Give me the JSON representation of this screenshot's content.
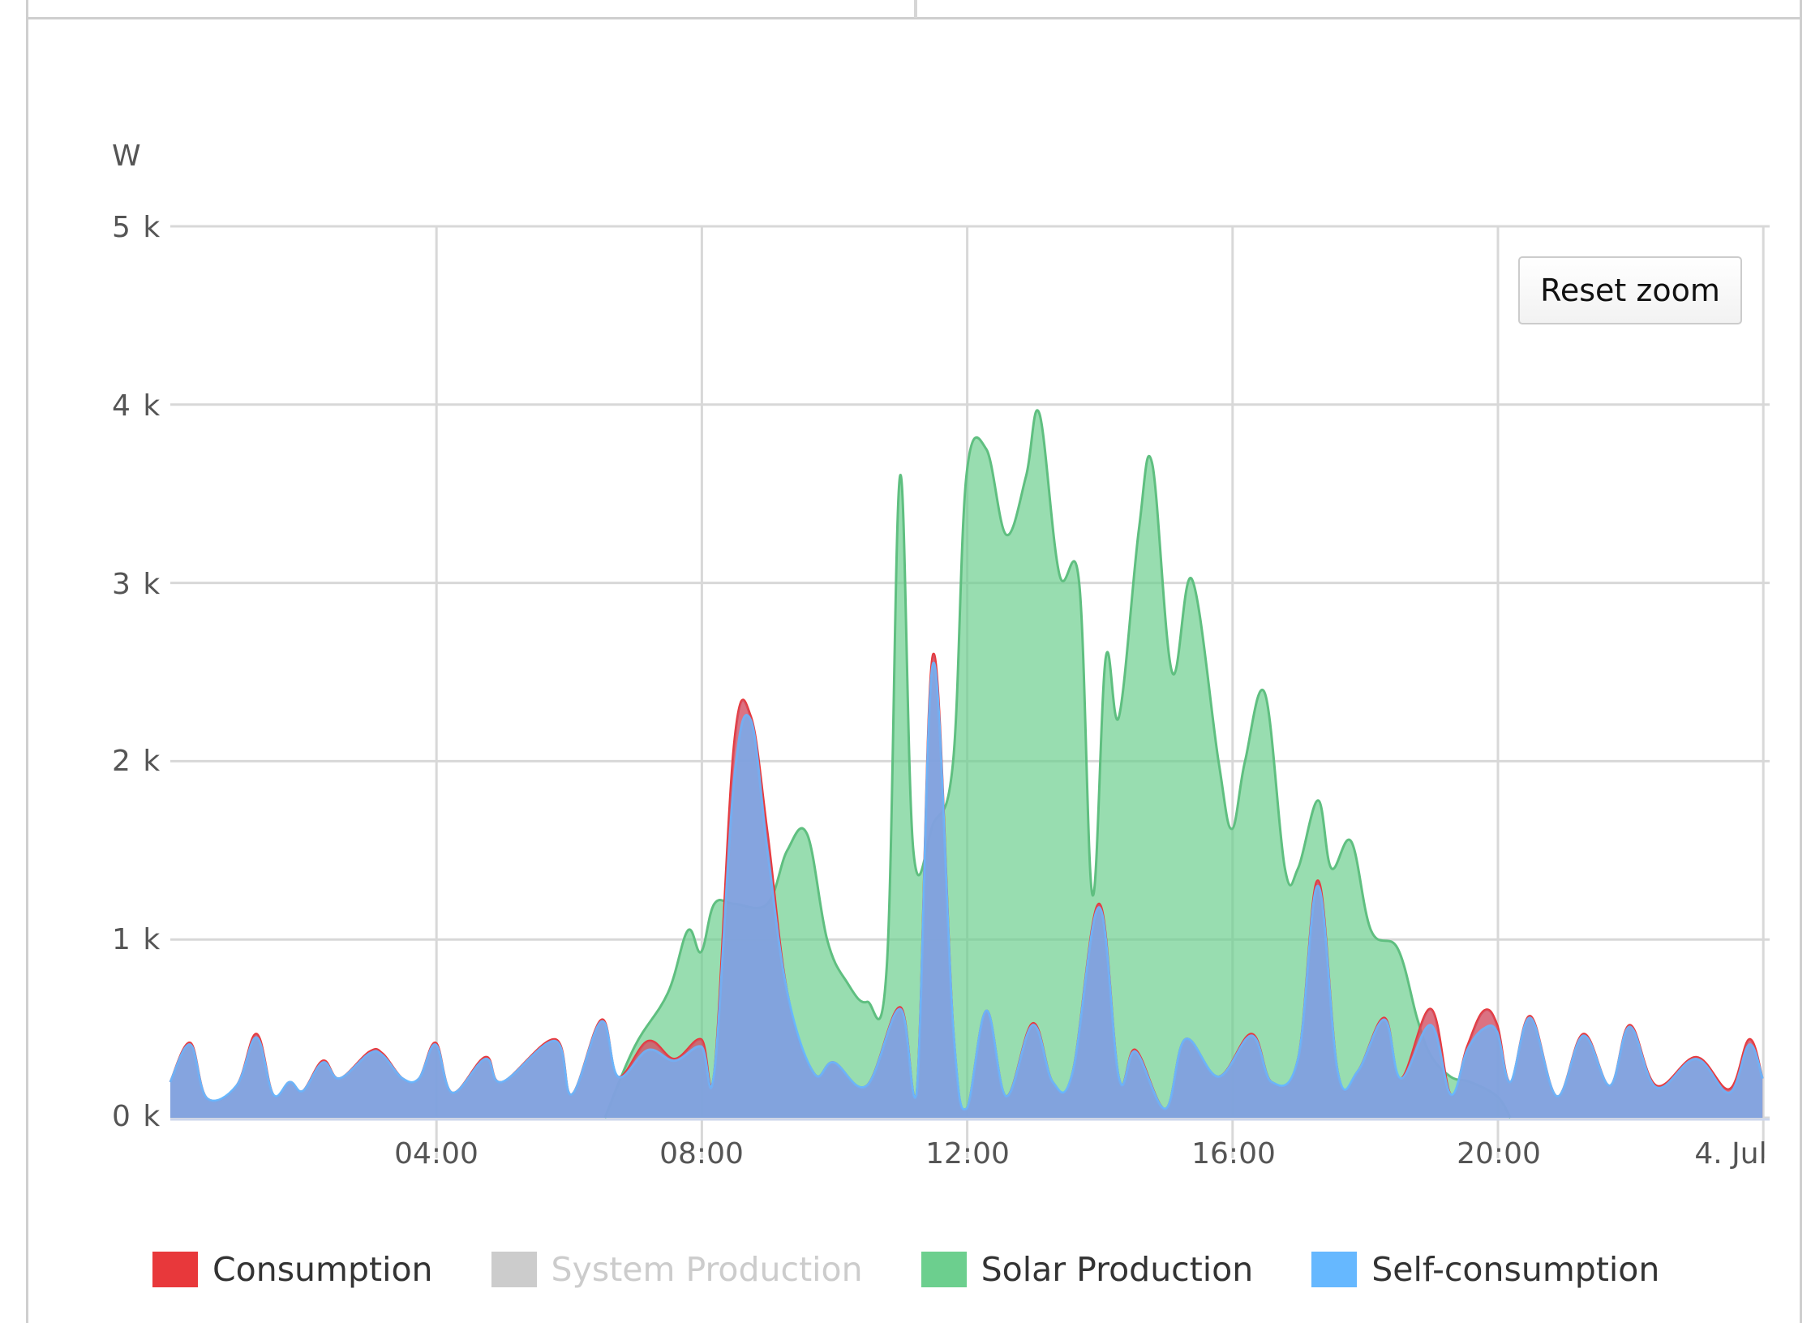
{
  "chart": {
    "reset_zoom_label": "Reset zoom",
    "y_unit": "W",
    "y_ticks": [
      "5 k",
      "4 k",
      "3 k",
      "2 k",
      "1 k",
      "0 k"
    ],
    "x_ticks": [
      "04:00",
      "08:00",
      "12:00",
      "16:00",
      "20:00",
      "4. Jul"
    ]
  },
  "legend": {
    "items": [
      {
        "label": "Consumption",
        "color": "#e8383b",
        "visible": true
      },
      {
        "label": "System Production",
        "color": "#cccccc",
        "visible": false
      },
      {
        "label": "Solar Production",
        "color": "#6ccf8e",
        "visible": true
      },
      {
        "label": "Self-consumption",
        "color": "#66b8ff",
        "visible": true
      }
    ]
  },
  "chart_data": {
    "type": "area",
    "title": "",
    "xlabel": "",
    "ylabel": "W",
    "ylim": [
      0,
      5000
    ],
    "xlim_hours": [
      0,
      24
    ],
    "x_tick_labels": [
      "04:00",
      "08:00",
      "12:00",
      "16:00",
      "20:00",
      "4. Jul"
    ],
    "y_tick_labels": [
      "0 k",
      "1 k",
      "2 k",
      "3 k",
      "4 k",
      "5 k"
    ],
    "grid": true,
    "legend_position": "bottom",
    "series": [
      {
        "name": "Consumption",
        "color": "#e8383b",
        "points": [
          [
            0,
            200
          ],
          [
            0.3,
            420
          ],
          [
            0.55,
            110
          ],
          [
            1.0,
            180
          ],
          [
            1.3,
            470
          ],
          [
            1.55,
            130
          ],
          [
            1.8,
            200
          ],
          [
            2.0,
            150
          ],
          [
            2.3,
            320
          ],
          [
            2.55,
            220
          ],
          [
            3.0,
            370
          ],
          [
            3.2,
            360
          ],
          [
            3.5,
            220
          ],
          [
            3.75,
            220
          ],
          [
            4.0,
            420
          ],
          [
            4.25,
            140
          ],
          [
            4.75,
            340
          ],
          [
            5.0,
            200
          ],
          [
            5.8,
            440
          ],
          [
            6.05,
            130
          ],
          [
            6.5,
            550
          ],
          [
            6.75,
            230
          ],
          [
            7.2,
            430
          ],
          [
            7.6,
            330
          ],
          [
            8.0,
            440
          ],
          [
            8.2,
            250
          ],
          [
            8.5,
            2100
          ],
          [
            8.75,
            2250
          ],
          [
            9.0,
            1600
          ],
          [
            9.3,
            700
          ],
          [
            9.7,
            250
          ],
          [
            10.0,
            310
          ],
          [
            10.5,
            180
          ],
          [
            11.0,
            620
          ],
          [
            11.25,
            130
          ],
          [
            11.5,
            2600
          ],
          [
            11.8,
            500
          ],
          [
            12.0,
            50
          ],
          [
            12.3,
            600
          ],
          [
            12.6,
            120
          ],
          [
            13.0,
            530
          ],
          [
            13.3,
            200
          ],
          [
            13.6,
            250
          ],
          [
            14.0,
            1200
          ],
          [
            14.3,
            220
          ],
          [
            14.55,
            380
          ],
          [
            15.0,
            50
          ],
          [
            15.3,
            440
          ],
          [
            15.8,
            230
          ],
          [
            16.3,
            470
          ],
          [
            16.6,
            200
          ],
          [
            17.0,
            330
          ],
          [
            17.3,
            1330
          ],
          [
            17.6,
            250
          ],
          [
            17.9,
            260
          ],
          [
            18.3,
            560
          ],
          [
            18.55,
            220
          ],
          [
            19.0,
            610
          ],
          [
            19.3,
            130
          ],
          [
            19.55,
            400
          ],
          [
            19.8,
            600
          ],
          [
            20.0,
            520
          ],
          [
            20.2,
            200
          ],
          [
            20.5,
            570
          ],
          [
            20.9,
            120
          ],
          [
            21.3,
            470
          ],
          [
            21.7,
            180
          ],
          [
            22.0,
            520
          ],
          [
            22.4,
            180
          ],
          [
            23.0,
            340
          ],
          [
            23.5,
            160
          ],
          [
            23.8,
            440
          ],
          [
            24.0,
            220
          ]
        ]
      },
      {
        "name": "System Production",
        "color": "#cccccc",
        "visible": false,
        "points": []
      },
      {
        "name": "Solar Production",
        "color": "#6ccf8e",
        "points": [
          [
            6.55,
            0
          ],
          [
            7.0,
            400
          ],
          [
            7.5,
            700
          ],
          [
            7.8,
            1050
          ],
          [
            8.0,
            930
          ],
          [
            8.2,
            1200
          ],
          [
            8.5,
            1200
          ],
          [
            9.0,
            1200
          ],
          [
            9.3,
            1500
          ],
          [
            9.6,
            1590
          ],
          [
            9.9,
            1000
          ],
          [
            10.2,
            760
          ],
          [
            10.5,
            650
          ],
          [
            10.8,
            850
          ],
          [
            11.0,
            3600
          ],
          [
            11.2,
            1500
          ],
          [
            11.5,
            1650
          ],
          [
            11.8,
            2000
          ],
          [
            12.0,
            3600
          ],
          [
            12.3,
            3750
          ],
          [
            12.6,
            3270
          ],
          [
            12.9,
            3600
          ],
          [
            13.1,
            3950
          ],
          [
            13.4,
            3050
          ],
          [
            13.7,
            3000
          ],
          [
            13.9,
            1250
          ],
          [
            14.1,
            2580
          ],
          [
            14.3,
            2250
          ],
          [
            14.6,
            3300
          ],
          [
            14.8,
            3670
          ],
          [
            15.1,
            2500
          ],
          [
            15.4,
            3020
          ],
          [
            15.8,
            2000
          ],
          [
            16.0,
            1620
          ],
          [
            16.2,
            2000
          ],
          [
            16.5,
            2380
          ],
          [
            16.8,
            1400
          ],
          [
            17.0,
            1400
          ],
          [
            17.3,
            1780
          ],
          [
            17.5,
            1400
          ],
          [
            17.8,
            1550
          ],
          [
            18.1,
            1050
          ],
          [
            18.5,
            950
          ],
          [
            18.8,
            550
          ],
          [
            19.0,
            350
          ],
          [
            19.3,
            230
          ],
          [
            19.6,
            200
          ],
          [
            20.0,
            120
          ],
          [
            20.2,
            0
          ]
        ]
      },
      {
        "name": "Self-consumption",
        "color": "#66b8ff",
        "points": [
          [
            0,
            200
          ],
          [
            0.3,
            410
          ],
          [
            0.55,
            110
          ],
          [
            1.0,
            180
          ],
          [
            1.3,
            450
          ],
          [
            1.55,
            130
          ],
          [
            1.8,
            200
          ],
          [
            2.0,
            150
          ],
          [
            2.3,
            310
          ],
          [
            2.55,
            220
          ],
          [
            3.0,
            360
          ],
          [
            3.2,
            350
          ],
          [
            3.5,
            220
          ],
          [
            3.75,
            220
          ],
          [
            4.0,
            410
          ],
          [
            4.25,
            140
          ],
          [
            4.75,
            330
          ],
          [
            5.0,
            200
          ],
          [
            5.8,
            430
          ],
          [
            6.05,
            130
          ],
          [
            6.5,
            540
          ],
          [
            6.75,
            230
          ],
          [
            7.2,
            380
          ],
          [
            7.6,
            320
          ],
          [
            8.0,
            400
          ],
          [
            8.2,
            250
          ],
          [
            8.5,
            1900
          ],
          [
            8.75,
            2230
          ],
          [
            9.0,
            1500
          ],
          [
            9.3,
            700
          ],
          [
            9.7,
            250
          ],
          [
            10.0,
            310
          ],
          [
            10.5,
            180
          ],
          [
            11.0,
            610
          ],
          [
            11.25,
            130
          ],
          [
            11.5,
            2550
          ],
          [
            11.8,
            500
          ],
          [
            12.0,
            50
          ],
          [
            12.3,
            600
          ],
          [
            12.6,
            120
          ],
          [
            13.0,
            520
          ],
          [
            13.3,
            200
          ],
          [
            13.6,
            250
          ],
          [
            14.0,
            1180
          ],
          [
            14.3,
            220
          ],
          [
            14.55,
            370
          ],
          [
            15.0,
            50
          ],
          [
            15.3,
            440
          ],
          [
            15.8,
            230
          ],
          [
            16.3,
            460
          ],
          [
            16.6,
            200
          ],
          [
            17.0,
            330
          ],
          [
            17.3,
            1300
          ],
          [
            17.6,
            250
          ],
          [
            17.9,
            260
          ],
          [
            18.3,
            550
          ],
          [
            18.55,
            220
          ],
          [
            19.0,
            520
          ],
          [
            19.3,
            130
          ],
          [
            19.55,
            380
          ],
          [
            19.8,
            500
          ],
          [
            20.0,
            480
          ],
          [
            20.2,
            200
          ],
          [
            20.5,
            560
          ],
          [
            20.9,
            120
          ],
          [
            21.3,
            460
          ],
          [
            21.7,
            180
          ],
          [
            22.0,
            510
          ],
          [
            22.4,
            170
          ],
          [
            23.0,
            330
          ],
          [
            23.5,
            140
          ],
          [
            23.8,
            410
          ],
          [
            24.0,
            220
          ]
        ]
      }
    ]
  }
}
